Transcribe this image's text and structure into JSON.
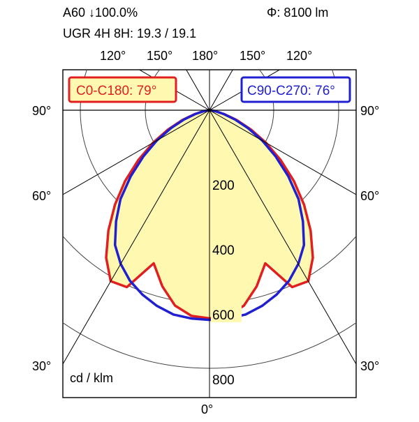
{
  "header": {
    "line1_left": "A60 ↓100.0%",
    "line1_right": "Φ: 8100 lm",
    "line2": "UGR 4H 8H: 19.3 / 19.1"
  },
  "chart_data": {
    "type": "polar",
    "units_label": "cd / klm",
    "radial_ticks": [
      "200",
      "400",
      "600",
      "800"
    ],
    "radial_values": [
      200,
      400,
      600,
      800
    ],
    "angle_labels": {
      "top": [
        "120°",
        "150°",
        "180°",
        "150°",
        "120°"
      ],
      "left": [
        "90°",
        "60°",
        "30°"
      ],
      "right": [
        "90°",
        "60°",
        "30°"
      ],
      "bottom": "0°"
    },
    "series": [
      {
        "name": "C0-C180: 79°",
        "color": "#e02020",
        "fill": "#fff8b0",
        "angles_deg": [
          0,
          5,
          10,
          15,
          20,
          25,
          30,
          35,
          40,
          45,
          50,
          55,
          60,
          65,
          70,
          75,
          80,
          85,
          90
        ],
        "values_cd_per_klm": [
          645,
          640,
          615,
          565,
          505,
          605,
          612,
          558,
          487,
          414,
          341,
          269,
          202,
          142,
          90,
          49,
          20,
          5,
          0
        ]
      },
      {
        "name": "C90-C270: 76°",
        "color": "#2020d0",
        "angles_deg": [
          0,
          5,
          10,
          15,
          20,
          25,
          30,
          35,
          40,
          45,
          50,
          55,
          60,
          65,
          70,
          75,
          80,
          85,
          90
        ],
        "values_cd_per_klm": [
          650,
          648,
          643,
          628,
          608,
          583,
          550,
          510,
          450,
          390,
          318,
          250,
          189,
          132,
          84,
          45,
          18,
          5,
          0
        ]
      }
    ]
  }
}
